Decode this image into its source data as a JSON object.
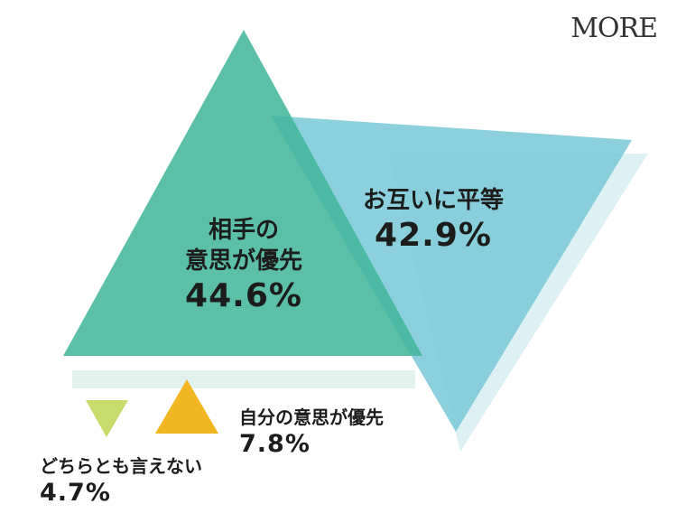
{
  "logo": "MORE",
  "chart_data": {
    "type": "pie",
    "categories": [
      "相手の意思が優先",
      "お互いに平等",
      "自分の意思が優先",
      "どちらとも言えない"
    ],
    "name_lines": [
      [
        "相手の",
        "意思が優先"
      ],
      [
        "お互いに平等"
      ],
      [
        "自分の意思が優先"
      ],
      [
        "どちらとも言えない"
      ]
    ],
    "values": [
      44.6,
      42.9,
      7.8,
      4.7
    ],
    "value_labels": [
      "44.6%",
      "42.9%",
      "7.8%",
      "4.7%"
    ],
    "colors": [
      "#3fb59a",
      "#7ecbd8",
      "#f2b623",
      "#c7dc6a"
    ]
  }
}
